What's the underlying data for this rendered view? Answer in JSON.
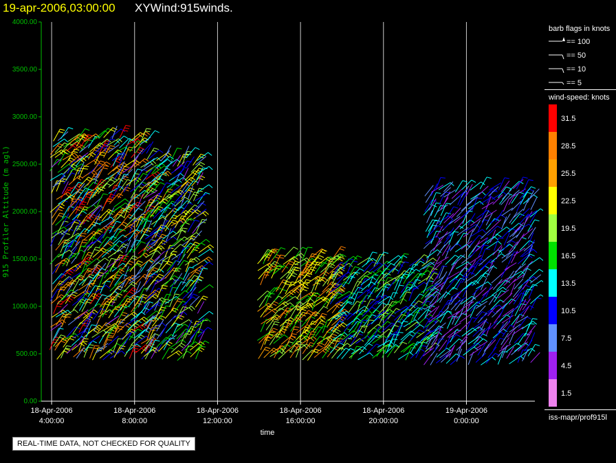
{
  "header": {
    "date_text": "19-apr-2006,03:00:00",
    "field_text": "XYWind:915winds."
  },
  "notice": "REAL-TIME DATA, NOT CHECKED FOR QUALITY",
  "legend": {
    "barb_title": "barb flags in knots",
    "barb_items": [
      "== 100",
      "== 50",
      "== 10",
      "== 5"
    ],
    "speed_title": "wind-speed: knots",
    "speed_ticks": [
      "31.5",
      "28.5",
      "25.5",
      "22.5",
      "19.5",
      "16.5",
      "13.5",
      "10.5",
      "7.5",
      "4.5",
      "1.5"
    ],
    "speed_colors": [
      "#ff0000",
      "#ff8000",
      "#ffa000",
      "#ffff00",
      "#a0ff40",
      "#00e000",
      "#00ffff",
      "#0000ff",
      "#6090ff",
      "#a020f0",
      "#ee82ee"
    ],
    "source": "iss-mapr/prof915l"
  },
  "chart_data": {
    "type": "scatter",
    "title": "XYWind:915winds.",
    "xlabel": "time",
    "ylabel": "915 Profiler Altitude (m agl)",
    "ylim": [
      0,
      4000
    ],
    "yticks": [
      "0.00",
      "500.00",
      "1000.00",
      "1500.00",
      "2000.00",
      "2500.00",
      "3000.00",
      "3500.00",
      "4000.00"
    ],
    "xlim_hours": [
      3.5,
      27.3
    ],
    "xticks": [
      {
        "date": "18-Apr-2006",
        "time": "4:00:00",
        "hour": 4
      },
      {
        "date": "18-Apr-2006",
        "time": "8:00:00",
        "hour": 8
      },
      {
        "date": "18-Apr-2006",
        "time": "12:00:00",
        "hour": 12
      },
      {
        "date": "18-Apr-2006",
        "time": "16:00:00",
        "hour": 16
      },
      {
        "date": "18-Apr-2006",
        "time": "20:00:00",
        "hour": 20
      },
      {
        "date": "19-Apr-2006",
        "time": "0:00:00",
        "hour": 24
      }
    ],
    "grid": "vertical",
    "marker": "wind barbs colored by wind speed (knots)",
    "profiles_approx": [
      {
        "hours": [
          4.0,
          8.5
        ],
        "alt_range": [
          450,
          2800
        ],
        "speed_range_knots": [
          5,
          32
        ]
      },
      {
        "hours": [
          8.5,
          11.0
        ],
        "alt_range": [
          450,
          2600
        ],
        "speed_range_knots": [
          5,
          25
        ]
      },
      {
        "hours": [
          14.0,
          17.5
        ],
        "alt_range": [
          450,
          1550
        ],
        "speed_range_knots": [
          15,
          30
        ]
      },
      {
        "hours": [
          17.5,
          22.0
        ],
        "alt_range": [
          450,
          1450
        ],
        "speed_range_knots": [
          10,
          20
        ]
      },
      {
        "hours": [
          22.0,
          27.0
        ],
        "alt_range": [
          400,
          2250
        ],
        "speed_range_knots": [
          3,
          15
        ]
      }
    ]
  }
}
